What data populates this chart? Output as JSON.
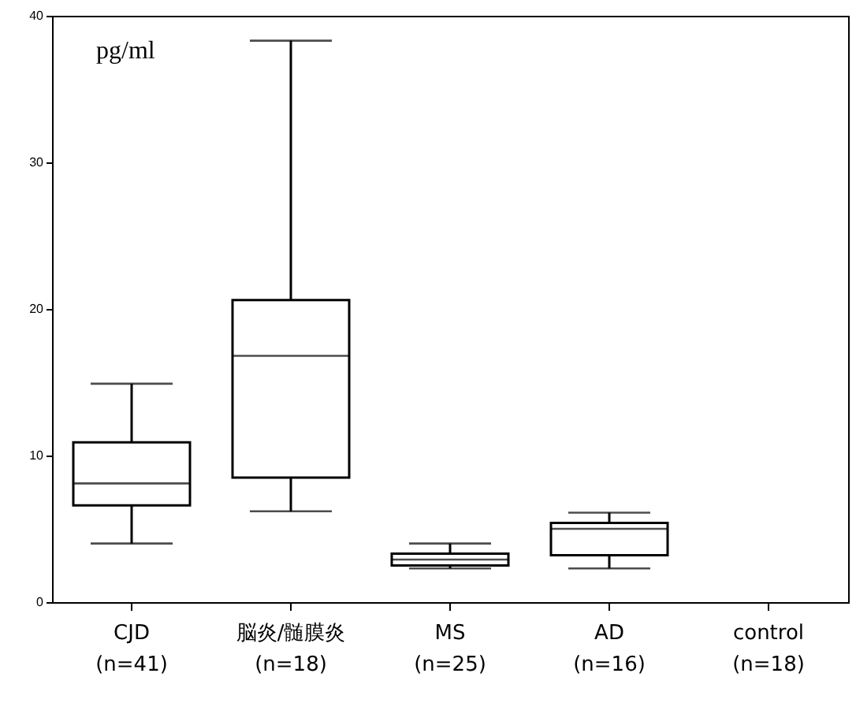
{
  "chart_data": {
    "type": "box",
    "ylabel": "pg/ml",
    "categories": [
      "CJD\n(n=41)",
      "脳炎/髄膜炎\n(n=18)",
      "MS\n(n=25)",
      "AD\n(n=16)",
      "control\n(n=18)"
    ],
    "boxes": [
      {
        "low": 4.0,
        "q1": 6.6,
        "median": 8.1,
        "q3": 10.9,
        "high": 14.9
      },
      {
        "low": 6.2,
        "q1": 8.5,
        "median": 16.8,
        "q3": 20.6,
        "high": 38.3
      },
      {
        "low": 2.3,
        "q1": 2.5,
        "median": 2.9,
        "q3": 3.3,
        "high": 4.0
      },
      {
        "low": 2.3,
        "q1": 3.2,
        "median": 5.0,
        "q3": 5.4,
        "high": 6.1
      },
      null
    ],
    "ylim": [
      0,
      40
    ],
    "yticks": [
      0,
      10,
      20,
      30,
      40
    ],
    "grid": false
  }
}
